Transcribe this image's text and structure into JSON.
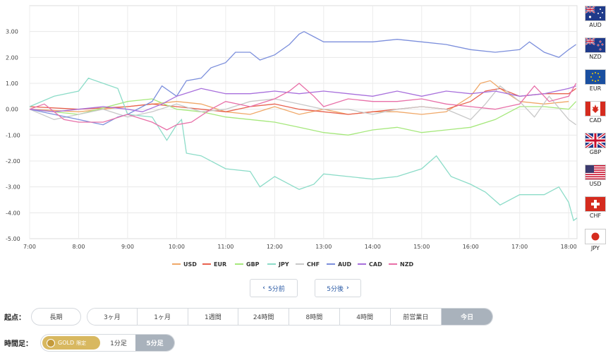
{
  "chart_data": {
    "type": "line",
    "title": "",
    "xlabel": "",
    "ylabel": "",
    "x_ticks": [
      "7:00",
      "8:00",
      "9:00",
      "10:00",
      "11:00",
      "12:00",
      "13:00",
      "14:00",
      "15:00",
      "16:00",
      "17:00",
      "18:00"
    ],
    "x_range": [
      7.0,
      18.17
    ],
    "ylim": [
      -5.0,
      4.0
    ],
    "y_ticks": [
      "3.00",
      "2.00",
      "1.00",
      "0.00",
      "-1.00",
      "-2.00",
      "-3.00",
      "-4.00",
      "-5.00"
    ],
    "grid": true,
    "legend_position": "bottom",
    "series": [
      {
        "name": "USD",
        "color": "#f0a868",
        "points": [
          [
            7.0,
            0.0
          ],
          [
            8.0,
            -0.1
          ],
          [
            9.0,
            0.1
          ],
          [
            10.0,
            0.3
          ],
          [
            10.5,
            0.2
          ],
          [
            11.0,
            -0.1
          ],
          [
            11.5,
            -0.2
          ],
          [
            12.0,
            0.1
          ],
          [
            12.5,
            -0.2
          ],
          [
            13.0,
            0.0
          ],
          [
            13.5,
            -0.2
          ],
          [
            14.0,
            -0.1
          ],
          [
            14.5,
            -0.1
          ],
          [
            15.0,
            -0.2
          ],
          [
            15.5,
            -0.1
          ],
          [
            16.0,
            0.5
          ],
          [
            16.2,
            1.0
          ],
          [
            16.4,
            1.1
          ],
          [
            16.6,
            0.8
          ],
          [
            17.0,
            0.3
          ],
          [
            17.5,
            0.2
          ],
          [
            18.0,
            0.3
          ]
        ]
      },
      {
        "name": "EUR",
        "color": "#e8624e",
        "points": [
          [
            7.0,
            0.1
          ],
          [
            8.0,
            0.0
          ],
          [
            9.0,
            0.1
          ],
          [
            9.5,
            0.2
          ],
          [
            10.0,
            0.1
          ],
          [
            10.5,
            0.0
          ],
          [
            11.0,
            -0.1
          ],
          [
            11.5,
            0.1
          ],
          [
            12.0,
            0.2
          ],
          [
            12.5,
            0.0
          ],
          [
            13.0,
            -0.1
          ],
          [
            13.5,
            -0.2
          ],
          [
            14.0,
            -0.1
          ],
          [
            14.5,
            0.0
          ],
          [
            15.0,
            0.1
          ],
          [
            15.5,
            0.0
          ],
          [
            16.0,
            0.3
          ],
          [
            16.3,
            0.7
          ],
          [
            16.6,
            0.8
          ],
          [
            17.0,
            0.5
          ],
          [
            17.5,
            0.6
          ],
          [
            18.0,
            0.6
          ],
          [
            18.15,
            0.8
          ]
        ]
      },
      {
        "name": "GBP",
        "color": "#a6e87c",
        "points": [
          [
            7.0,
            0.0
          ],
          [
            8.0,
            -0.2
          ],
          [
            9.0,
            0.3
          ],
          [
            9.5,
            0.4
          ],
          [
            10.0,
            0.0
          ],
          [
            10.5,
            -0.1
          ],
          [
            11.0,
            -0.3
          ],
          [
            11.5,
            -0.4
          ],
          [
            12.0,
            -0.5
          ],
          [
            12.5,
            -0.7
          ],
          [
            13.0,
            -0.9
          ],
          [
            13.5,
            -1.0
          ],
          [
            14.0,
            -0.8
          ],
          [
            14.5,
            -0.7
          ],
          [
            15.0,
            -0.9
          ],
          [
            15.5,
            -0.8
          ],
          [
            16.0,
            -0.7
          ],
          [
            16.5,
            -0.4
          ],
          [
            16.8,
            -0.1
          ],
          [
            17.0,
            0.1
          ],
          [
            17.5,
            0.1
          ],
          [
            18.0,
            0.0
          ],
          [
            18.15,
            0.3
          ]
        ]
      },
      {
        "name": "JPY",
        "color": "#8cdcc8",
        "points": [
          [
            7.0,
            0.1
          ],
          [
            7.5,
            0.5
          ],
          [
            8.0,
            0.7
          ],
          [
            8.2,
            1.2
          ],
          [
            8.5,
            1.0
          ],
          [
            8.8,
            0.8
          ],
          [
            9.0,
            -0.2
          ],
          [
            9.5,
            -0.3
          ],
          [
            9.8,
            -1.2
          ],
          [
            10.0,
            -0.6
          ],
          [
            10.1,
            -0.4
          ],
          [
            10.2,
            -1.7
          ],
          [
            10.5,
            -1.8
          ],
          [
            11.0,
            -2.3
          ],
          [
            11.5,
            -2.4
          ],
          [
            11.7,
            -3.0
          ],
          [
            12.0,
            -2.6
          ],
          [
            12.5,
            -3.1
          ],
          [
            12.8,
            -2.9
          ],
          [
            13.0,
            -2.5
          ],
          [
            13.5,
            -2.6
          ],
          [
            14.0,
            -2.7
          ],
          [
            14.5,
            -2.6
          ],
          [
            15.0,
            -2.3
          ],
          [
            15.3,
            -1.8
          ],
          [
            15.6,
            -2.6
          ],
          [
            16.0,
            -2.9
          ],
          [
            16.3,
            -3.2
          ],
          [
            16.6,
            -3.7
          ],
          [
            17.0,
            -3.3
          ],
          [
            17.5,
            -3.3
          ],
          [
            17.8,
            -3.0
          ],
          [
            18.0,
            -3.6
          ],
          [
            18.1,
            -4.3
          ],
          [
            18.17,
            -4.2
          ]
        ]
      },
      {
        "name": "CHF",
        "color": "#c8c8c8",
        "points": [
          [
            7.0,
            0.0
          ],
          [
            7.5,
            -0.4
          ],
          [
            8.0,
            -0.2
          ],
          [
            8.5,
            0.0
          ],
          [
            9.0,
            -0.3
          ],
          [
            9.5,
            -0.1
          ],
          [
            10.0,
            0.2
          ],
          [
            10.5,
            -0.1
          ],
          [
            11.0,
            0.0
          ],
          [
            11.5,
            0.3
          ],
          [
            12.0,
            0.4
          ],
          [
            12.5,
            0.2
          ],
          [
            13.0,
            0.0
          ],
          [
            13.5,
            0.0
          ],
          [
            14.0,
            -0.2
          ],
          [
            14.5,
            0.0
          ],
          [
            15.0,
            0.1
          ],
          [
            15.5,
            0.0
          ],
          [
            16.0,
            -0.4
          ],
          [
            16.3,
            0.2
          ],
          [
            16.6,
            0.9
          ],
          [
            17.0,
            0.3
          ],
          [
            17.3,
            -0.3
          ],
          [
            17.6,
            0.5
          ],
          [
            18.0,
            -0.4
          ],
          [
            18.15,
            -0.6
          ]
        ]
      },
      {
        "name": "AUD",
        "color": "#7c8fdc",
        "points": [
          [
            7.0,
            0.0
          ],
          [
            7.5,
            -0.2
          ],
          [
            8.0,
            -0.4
          ],
          [
            8.5,
            -0.6
          ],
          [
            8.8,
            -0.3
          ],
          [
            9.0,
            -0.2
          ],
          [
            9.5,
            0.3
          ],
          [
            9.7,
            0.9
          ],
          [
            10.0,
            0.5
          ],
          [
            10.2,
            1.1
          ],
          [
            10.5,
            1.2
          ],
          [
            10.7,
            1.6
          ],
          [
            11.0,
            1.8
          ],
          [
            11.2,
            2.2
          ],
          [
            11.5,
            2.2
          ],
          [
            11.7,
            1.9
          ],
          [
            12.0,
            2.1
          ],
          [
            12.3,
            2.5
          ],
          [
            12.5,
            2.9
          ],
          [
            12.6,
            3.0
          ],
          [
            12.8,
            2.8
          ],
          [
            13.0,
            2.6
          ],
          [
            13.5,
            2.6
          ],
          [
            14.0,
            2.6
          ],
          [
            14.5,
            2.7
          ],
          [
            15.0,
            2.6
          ],
          [
            15.5,
            2.5
          ],
          [
            16.0,
            2.3
          ],
          [
            16.5,
            2.2
          ],
          [
            17.0,
            2.3
          ],
          [
            17.2,
            2.6
          ],
          [
            17.5,
            2.2
          ],
          [
            17.8,
            2.0
          ],
          [
            18.0,
            2.3
          ],
          [
            18.15,
            2.5
          ]
        ]
      },
      {
        "name": "CAD",
        "color": "#a870dc",
        "points": [
          [
            7.0,
            0.0
          ],
          [
            7.5,
            -0.1
          ],
          [
            8.0,
            0.0
          ],
          [
            8.5,
            0.1
          ],
          [
            9.0,
            0.0
          ],
          [
            9.3,
            -0.1
          ],
          [
            9.7,
            0.2
          ],
          [
            10.0,
            0.5
          ],
          [
            10.5,
            0.8
          ],
          [
            11.0,
            0.6
          ],
          [
            11.5,
            0.6
          ],
          [
            12.0,
            0.7
          ],
          [
            12.5,
            0.6
          ],
          [
            13.0,
            0.7
          ],
          [
            13.5,
            0.6
          ],
          [
            14.0,
            0.5
          ],
          [
            14.5,
            0.7
          ],
          [
            15.0,
            0.5
          ],
          [
            15.5,
            0.7
          ],
          [
            16.0,
            0.6
          ],
          [
            16.5,
            0.7
          ],
          [
            17.0,
            0.5
          ],
          [
            17.5,
            0.6
          ],
          [
            18.0,
            0.8
          ],
          [
            18.15,
            0.9
          ]
        ]
      },
      {
        "name": "NZD",
        "color": "#e870a8",
        "points": [
          [
            7.0,
            0.0
          ],
          [
            7.3,
            0.2
          ],
          [
            7.7,
            -0.4
          ],
          [
            8.0,
            -0.5
          ],
          [
            8.5,
            -0.5
          ],
          [
            9.0,
            -0.2
          ],
          [
            9.5,
            -0.5
          ],
          [
            9.8,
            -0.8
          ],
          [
            10.0,
            -0.6
          ],
          [
            10.3,
            -0.5
          ],
          [
            10.7,
            0.0
          ],
          [
            11.0,
            0.3
          ],
          [
            11.5,
            0.1
          ],
          [
            12.0,
            0.4
          ],
          [
            12.3,
            0.7
          ],
          [
            12.5,
            1.0
          ],
          [
            12.8,
            0.5
          ],
          [
            13.0,
            0.1
          ],
          [
            13.5,
            0.4
          ],
          [
            14.0,
            0.3
          ],
          [
            14.5,
            0.3
          ],
          [
            15.0,
            0.4
          ],
          [
            15.5,
            0.2
          ],
          [
            16.0,
            0.1
          ],
          [
            16.5,
            0.0
          ],
          [
            17.0,
            0.2
          ],
          [
            17.3,
            0.9
          ],
          [
            17.6,
            0.3
          ],
          [
            18.0,
            0.5
          ],
          [
            18.15,
            1.0
          ]
        ]
      }
    ]
  },
  "flags": [
    {
      "code": "AUD",
      "icon": "australia-flag-icon"
    },
    {
      "code": "NZD",
      "icon": "new-zealand-flag-icon"
    },
    {
      "code": "EUR",
      "icon": "eu-flag-icon"
    },
    {
      "code": "CAD",
      "icon": "canada-flag-icon"
    },
    {
      "code": "GBP",
      "icon": "uk-flag-icon"
    },
    {
      "code": "USD",
      "icon": "us-flag-icon"
    },
    {
      "code": "CHF",
      "icon": "swiss-flag-icon"
    },
    {
      "code": "JPY",
      "icon": "japan-flag-icon"
    }
  ],
  "nav": {
    "prev_label": "5分前",
    "next_label": "5分後",
    "prev_icon": "chevron-left-icon",
    "next_icon": "chevron-right-icon"
  },
  "start": {
    "label": "起点：",
    "long_label": "長期",
    "options": [
      "3ヶ月",
      "1ヶ月",
      "1週間",
      "24時間",
      "8時間",
      "4時間",
      "前営業日",
      "今日"
    ],
    "active": "今日"
  },
  "timeframe": {
    "label": "時間足：",
    "gold_label": "GOLD",
    "gold_limit": "限定",
    "options": [
      "1分足",
      "5分足"
    ],
    "active": "5分足"
  }
}
